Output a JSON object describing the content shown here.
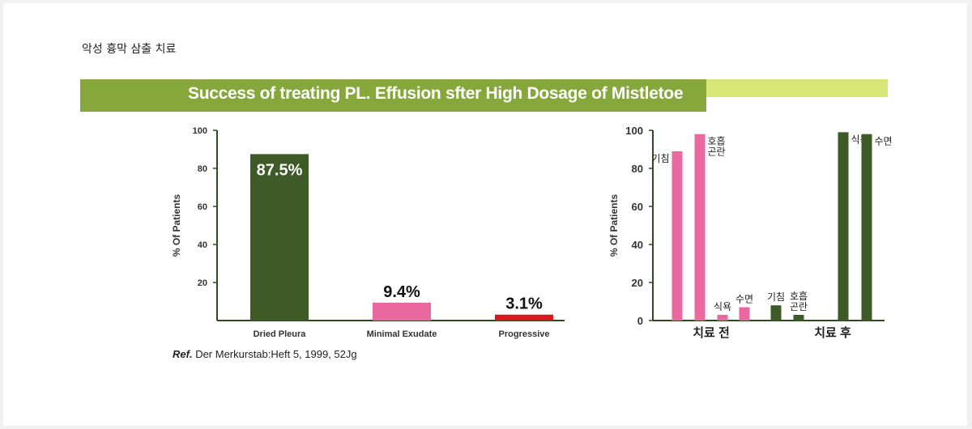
{
  "page_title": "악성 흉막 삼출 치료",
  "banner": {
    "title": "Success of treating PL. Effusion sfter High Dosage of Mistletoe"
  },
  "reference": {
    "prefix": "Ref.",
    "text": "Der Merkurstab:Heft 5, 1999, 52Jg"
  },
  "colors": {
    "dark_green": "#3e5a27",
    "pink": "#e8689f",
    "red": "#d71920",
    "banner": "#86a73c",
    "banner_light": "#d7e775"
  },
  "chart_data": [
    {
      "type": "bar",
      "ylabel": "% Of Patients",
      "ylim": [
        0,
        100
      ],
      "yticks": [
        "100",
        "80",
        "60",
        "40",
        "20"
      ],
      "categories": [
        "Dried Pleura",
        "Minimal Exudate",
        "Progressive"
      ],
      "values": [
        87.5,
        9.4,
        3.1
      ],
      "data_labels": [
        "87.5%",
        "9.4%",
        "3.1%"
      ],
      "colors": [
        "#3e5a27",
        "#e8689f",
        "#d71920"
      ]
    },
    {
      "type": "bar",
      "ylabel": "% Of Patients",
      "ylim": [
        0,
        100
      ],
      "yticks": [
        "100",
        "80",
        "60",
        "40",
        "20",
        "0"
      ],
      "groups": [
        {
          "label": "치료 전",
          "color": "#e8689f",
          "bars": [
            {
              "label": "기침",
              "value": 89
            },
            {
              "label": "호흡\n곤란",
              "value": 98
            },
            {
              "label": "식욕",
              "value": 3
            },
            {
              "label": "수면",
              "value": 7
            }
          ]
        },
        {
          "label": "치료 후",
          "color": "#3e5a27",
          "bars": [
            {
              "label": "기침",
              "value": 8
            },
            {
              "label": "호흡\n곤란",
              "value": 3
            },
            {
              "label": "식욕",
              "value": 99
            },
            {
              "label": "수면",
              "value": 98
            }
          ]
        }
      ]
    }
  ]
}
